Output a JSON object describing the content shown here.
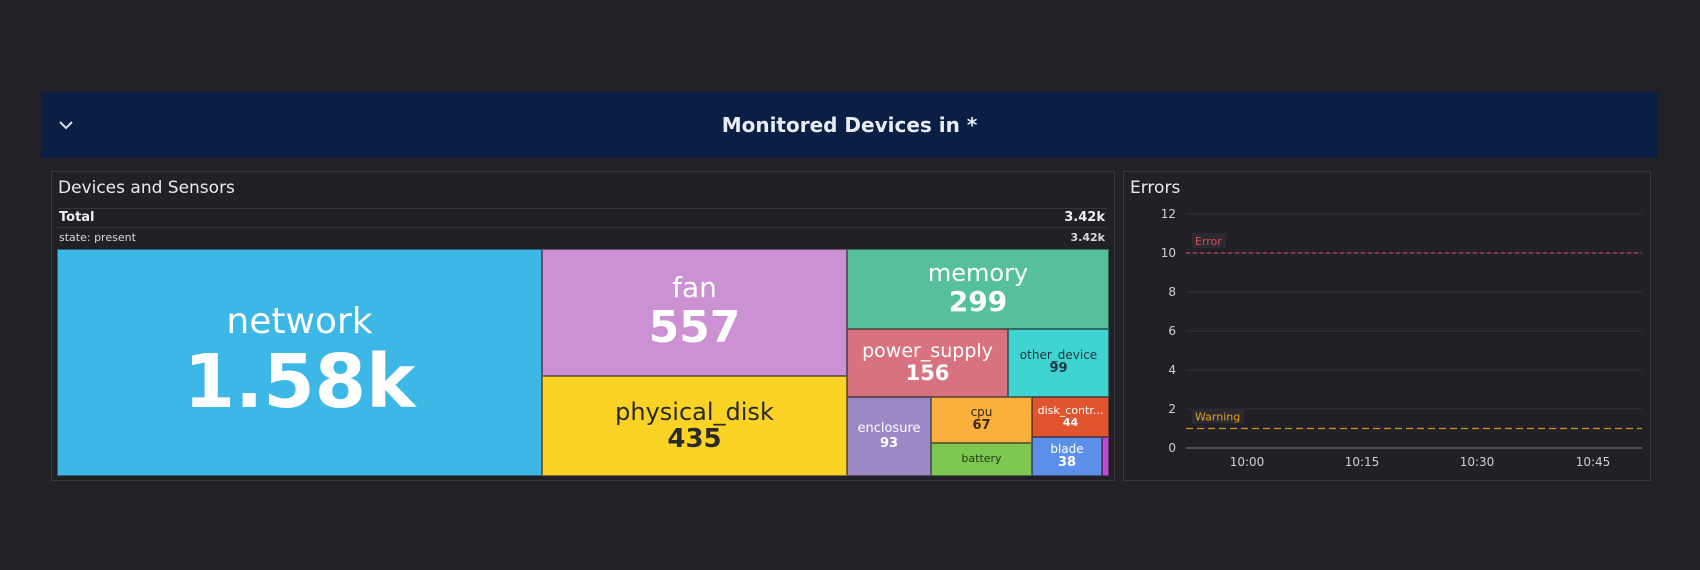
{
  "row": {
    "title": "Monitored Devices in *"
  },
  "devices_panel": {
    "title": "Devices and Sensors",
    "total_label": "Total",
    "total_value": "3.42k",
    "state_label": "state: present",
    "state_value": "3.42k"
  },
  "tiles": [
    {
      "name": "network",
      "value": "1.58k",
      "color": "#3db7e6",
      "text": "#ffffff"
    },
    {
      "name": "fan",
      "value": "557",
      "color": "#cc91d3",
      "text": "#ffffff"
    },
    {
      "name": "physical_disk",
      "value": "435",
      "color": "#fbd324",
      "text": "#2a2a2a"
    },
    {
      "name": "memory",
      "value": "299",
      "color": "#56c09b",
      "text": "#ffffff"
    },
    {
      "name": "power_supply",
      "value": "156",
      "color": "#d9727f",
      "text": "#ffffff"
    },
    {
      "name": "other_device",
      "value": "99",
      "color": "#3fd3d1",
      "text": "#1e3540"
    },
    {
      "name": "enclosure",
      "value": "93",
      "color": "#9b88c4",
      "text": "#ffffff"
    },
    {
      "name": "cpu",
      "value": "67",
      "color": "#fbb03b",
      "text": "#3a2a10"
    },
    {
      "name": "disk_contr...",
      "value": "44",
      "color": "#e0542e",
      "text": "#ffffff"
    },
    {
      "name": "battery",
      "value": "",
      "color": "#7ec751",
      "text": "#1f3a14"
    },
    {
      "name": "blade",
      "value": "38",
      "color": "#5b8fe8",
      "text": "#ffffff"
    }
  ],
  "errors_panel": {
    "title": "Errors",
    "error_label": "Error",
    "warning_label": "Warning"
  },
  "chart_data": {
    "type": "line",
    "title": "Errors",
    "y_ticks": [
      "0",
      "2",
      "4",
      "6",
      "8",
      "10",
      "12"
    ],
    "ylim": [
      0,
      12
    ],
    "x_ticks": [
      "10:00",
      "10:15",
      "10:30",
      "10:45"
    ],
    "thresholds": [
      {
        "name": "Error",
        "value": 10,
        "color": "#e0495a"
      },
      {
        "name": "Warning",
        "value": 1,
        "color": "#e5a21e"
      }
    ],
    "series": [],
    "grid": true
  }
}
